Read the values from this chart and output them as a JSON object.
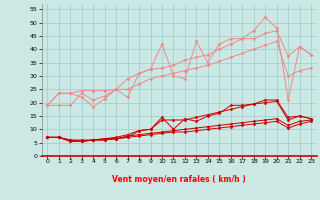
{
  "xlabel": "Vent moyen/en rafales ( km/h )",
  "bg_color": "#cce8e4",
  "grid_color": "#99cccc",
  "xlim": [
    -0.5,
    23.5
  ],
  "ylim": [
    0,
    57
  ],
  "yticks": [
    0,
    5,
    10,
    15,
    20,
    25,
    30,
    35,
    40,
    45,
    50,
    55
  ],
  "xticks": [
    0,
    1,
    2,
    3,
    4,
    5,
    6,
    7,
    8,
    9,
    10,
    11,
    12,
    13,
    14,
    15,
    16,
    17,
    18,
    19,
    20,
    21,
    22,
    23
  ],
  "light_lines": [
    [
      19.0,
      23.5,
      23.5,
      22.0,
      18.5,
      21.5,
      25.0,
      22.0,
      31.0,
      32.5,
      42.0,
      30.0,
      29.0,
      43.0,
      35.0,
      42.0,
      44.0,
      44.0,
      47.0,
      52.0,
      48.0,
      21.0,
      41.0,
      38.0
    ],
    [
      19.0,
      23.5,
      23.5,
      24.5,
      24.5,
      24.5,
      25.0,
      29.0,
      31.0,
      32.5,
      33.0,
      34.0,
      36.0,
      37.0,
      38.0,
      40.0,
      42.0,
      44.0,
      44.0,
      46.0,
      47.0,
      37.5,
      41.0,
      38.0
    ],
    [
      19.0,
      19.0,
      19.0,
      23.5,
      21.0,
      22.5,
      25.0,
      25.0,
      27.0,
      29.0,
      30.0,
      31.0,
      32.0,
      33.0,
      34.0,
      35.5,
      37.0,
      38.5,
      40.0,
      41.5,
      43.0,
      30.0,
      32.0,
      33.0
    ]
  ],
  "dark_lines": [
    [
      7.0,
      7.0,
      6.0,
      5.5,
      6.0,
      6.5,
      6.5,
      7.0,
      9.5,
      10.0,
      14.5,
      10.0,
      14.0,
      13.0,
      15.0,
      16.0,
      19.0,
      19.0,
      19.5,
      21.0,
      21.0,
      14.5,
      15.0,
      14.0
    ],
    [
      7.0,
      7.0,
      6.0,
      6.0,
      6.0,
      6.5,
      7.0,
      8.0,
      9.5,
      10.0,
      13.5,
      13.5,
      13.5,
      14.5,
      15.5,
      16.5,
      17.5,
      18.5,
      19.5,
      20.0,
      20.5,
      13.5,
      15.0,
      14.0
    ],
    [
      7.0,
      7.0,
      5.5,
      5.5,
      6.0,
      6.0,
      6.5,
      7.5,
      8.0,
      8.5,
      9.0,
      9.5,
      10.0,
      10.5,
      11.0,
      11.5,
      12.0,
      12.5,
      13.0,
      13.5,
      14.0,
      11.5,
      13.0,
      13.5
    ],
    [
      7.0,
      7.0,
      5.5,
      5.5,
      6.0,
      6.0,
      6.5,
      7.0,
      7.5,
      8.0,
      8.5,
      9.0,
      9.0,
      9.5,
      10.0,
      10.5,
      11.0,
      11.5,
      12.0,
      12.5,
      13.0,
      10.5,
      12.0,
      13.0
    ]
  ],
  "light_color": "#f08888",
  "dark_color": "#cc0000",
  "marker": "D",
  "marker_size": 1.5,
  "linewidth": 0.7,
  "wind_arrows": [
    "↓",
    "↘",
    "↘",
    "→",
    "→",
    "→",
    "→",
    "→",
    "→",
    "→",
    "↓",
    "↘",
    "↓",
    "↓",
    "↓",
    "↓",
    "↓",
    "↓",
    "↓",
    "↙",
    "↙",
    "↓",
    "↓",
    "↓"
  ]
}
